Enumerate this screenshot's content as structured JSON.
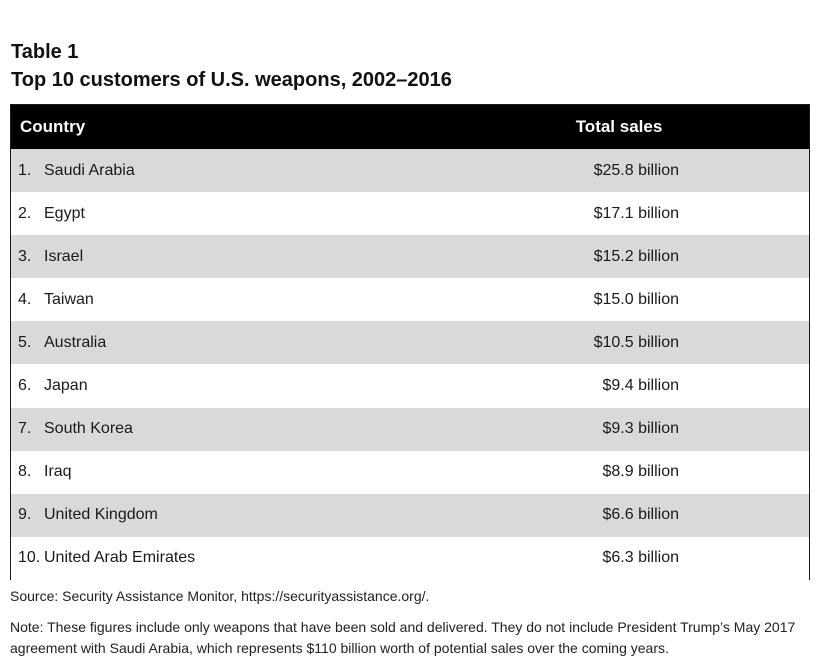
{
  "header": {
    "label": "Table 1",
    "title": "Top 10 customers of U.S. weapons, 2002–2016"
  },
  "table": {
    "columns": [
      "Country",
      "Total sales"
    ],
    "rows": [
      {
        "rank": "1.",
        "country": "Saudi Arabia",
        "sales": "$25.8 billion"
      },
      {
        "rank": "2.",
        "country": "Egypt",
        "sales": "$17.1 billion"
      },
      {
        "rank": "3.",
        "country": "Israel",
        "sales": "$15.2 billion"
      },
      {
        "rank": "4.",
        "country": "Taiwan",
        "sales": "$15.0 billion"
      },
      {
        "rank": "5.",
        "country": "Australia",
        "sales": "$10.5 billion"
      },
      {
        "rank": "6.",
        "country": "Japan",
        "sales": "$9.4 billion"
      },
      {
        "rank": "7.",
        "country": "South Korea",
        "sales": "$9.3 billion"
      },
      {
        "rank": "8.",
        "country": "Iraq",
        "sales": "$8.9 billion"
      },
      {
        "rank": "9.",
        "country": "United Kingdom",
        "sales": "$6.6 billion"
      },
      {
        "rank": "10.",
        "country": "United Arab Emirates",
        "sales": "$6.3 billion"
      }
    ]
  },
  "footer": {
    "source": "Source: Security Assistance Monitor, https://securityassistance.org/.",
    "note": "Note: These figures include only weapons that have been sold and delivered. They do not include President Trump’s May 2017 agreement with Saudi Arabia, which represents $110 billion worth of potential sales over the coming years."
  },
  "colors": {
    "header_bg": "#000000",
    "row_shade": "#d9d9d9"
  }
}
